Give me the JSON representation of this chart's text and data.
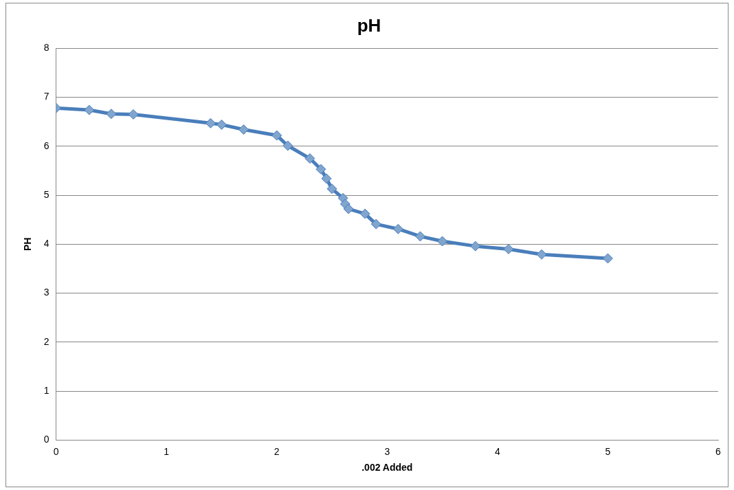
{
  "chart_data": {
    "type": "line",
    "title": "pH",
    "xlabel": ".002 Added",
    "ylabel": "PH",
    "x": [
      0,
      0.3,
      0.5,
      0.7,
      1.4,
      1.5,
      1.7,
      2.0,
      2.1,
      2.3,
      2.4,
      2.45,
      2.5,
      2.6,
      2.62,
      2.65,
      2.8,
      2.9,
      3.1,
      3.3,
      3.5,
      3.8,
      4.1,
      4.4,
      5.0
    ],
    "series": [
      {
        "color": "#4a7ebb",
        "values": [
          6.78,
          6.74,
          6.66,
          6.65,
          6.47,
          6.44,
          6.34,
          6.22,
          6.01,
          5.75,
          5.53,
          5.34,
          5.13,
          4.94,
          4.82,
          4.72,
          4.62,
          4.41,
          4.31,
          4.16,
          4.06,
          3.96,
          3.9,
          3.79,
          3.71
        ]
      }
    ],
    "xlim": [
      0,
      6
    ],
    "xticks": [
      0,
      1,
      2,
      3,
      4,
      5,
      6
    ],
    "ylim": [
      0,
      8
    ],
    "yticks": [
      0,
      1,
      2,
      3,
      4,
      5,
      6,
      7,
      8
    ],
    "grid": "y",
    "legend": false,
    "marker": "diamond",
    "line_style": "solid"
  }
}
